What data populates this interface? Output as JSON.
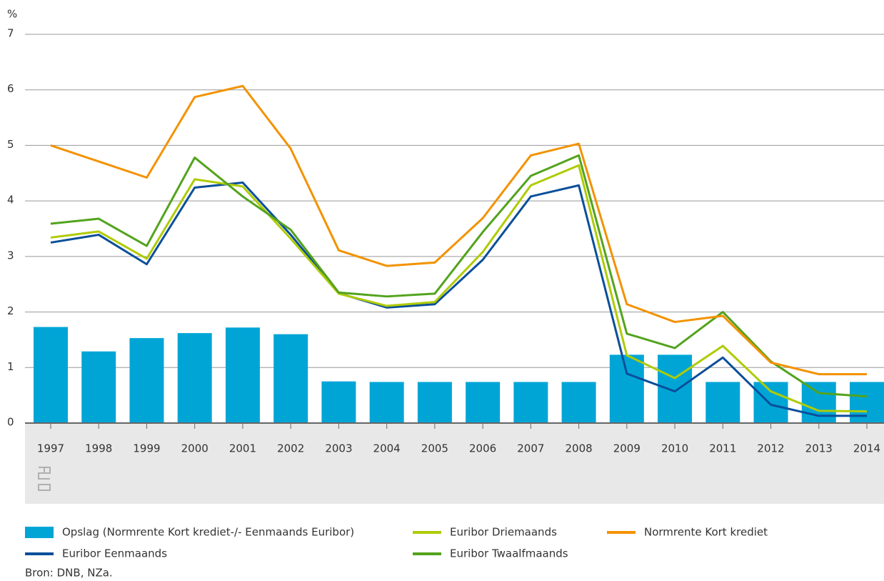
{
  "chart_data": {
    "type": "bar_line",
    "y_label": "%",
    "categories": [
      "1997",
      "1998",
      "1999",
      "2000",
      "2001",
      "2002",
      "2003",
      "2004",
      "2005",
      "2006",
      "2007",
      "2008",
      "2009",
      "2010",
      "2011",
      "2012",
      "2013",
      "2014"
    ],
    "ylim": [
      0,
      7
    ],
    "yticks": [
      0,
      1,
      2,
      3,
      4,
      5,
      6,
      7
    ],
    "grid": true,
    "series": [
      {
        "name": "Opslag (Normrente Kort krediet-/- Eenmaands Euribor)",
        "type": "bar",
        "color": "#00a5d6",
        "values": [
          1.73,
          1.29,
          1.53,
          1.62,
          1.72,
          1.6,
          0.75,
          0.74,
          0.74,
          0.74,
          0.74,
          0.74,
          1.23,
          1.23,
          0.74,
          0.74,
          0.74,
          0.74
        ]
      },
      {
        "name": "Euribor Eenmaands",
        "type": "line",
        "color": "#0a4f9a",
        "values": [
          3.25,
          3.39,
          2.86,
          4.24,
          4.33,
          3.39,
          2.34,
          2.08,
          2.14,
          2.94,
          4.08,
          4.28,
          0.89,
          0.57,
          1.18,
          0.33,
          0.13,
          0.13
        ]
      },
      {
        "name": "Euribor Driemaands",
        "type": "line",
        "color": "#afcb06",
        "values": [
          3.34,
          3.45,
          2.96,
          4.39,
          4.26,
          3.32,
          2.33,
          2.11,
          2.18,
          3.08,
          4.28,
          4.64,
          1.22,
          0.81,
          1.39,
          0.57,
          0.22,
          0.21
        ]
      },
      {
        "name": "Euribor Twaalfmaands",
        "type": "line",
        "color": "#53a31d",
        "values": [
          3.59,
          3.68,
          3.19,
          4.78,
          4.08,
          3.48,
          2.35,
          2.28,
          2.33,
          3.44,
          4.45,
          4.82,
          1.61,
          1.35,
          2.0,
          1.11,
          0.54,
          0.48
        ]
      },
      {
        "name": "Normrente Kort krediet",
        "type": "line",
        "color": "#f39200",
        "values": [
          5.0,
          4.71,
          4.42,
          5.87,
          6.07,
          4.94,
          3.11,
          2.83,
          2.89,
          3.69,
          4.82,
          5.03,
          2.14,
          1.82,
          1.93,
          1.09,
          0.88,
          0.88
        ]
      }
    ],
    "source": "Bron: DNB, NZa."
  }
}
